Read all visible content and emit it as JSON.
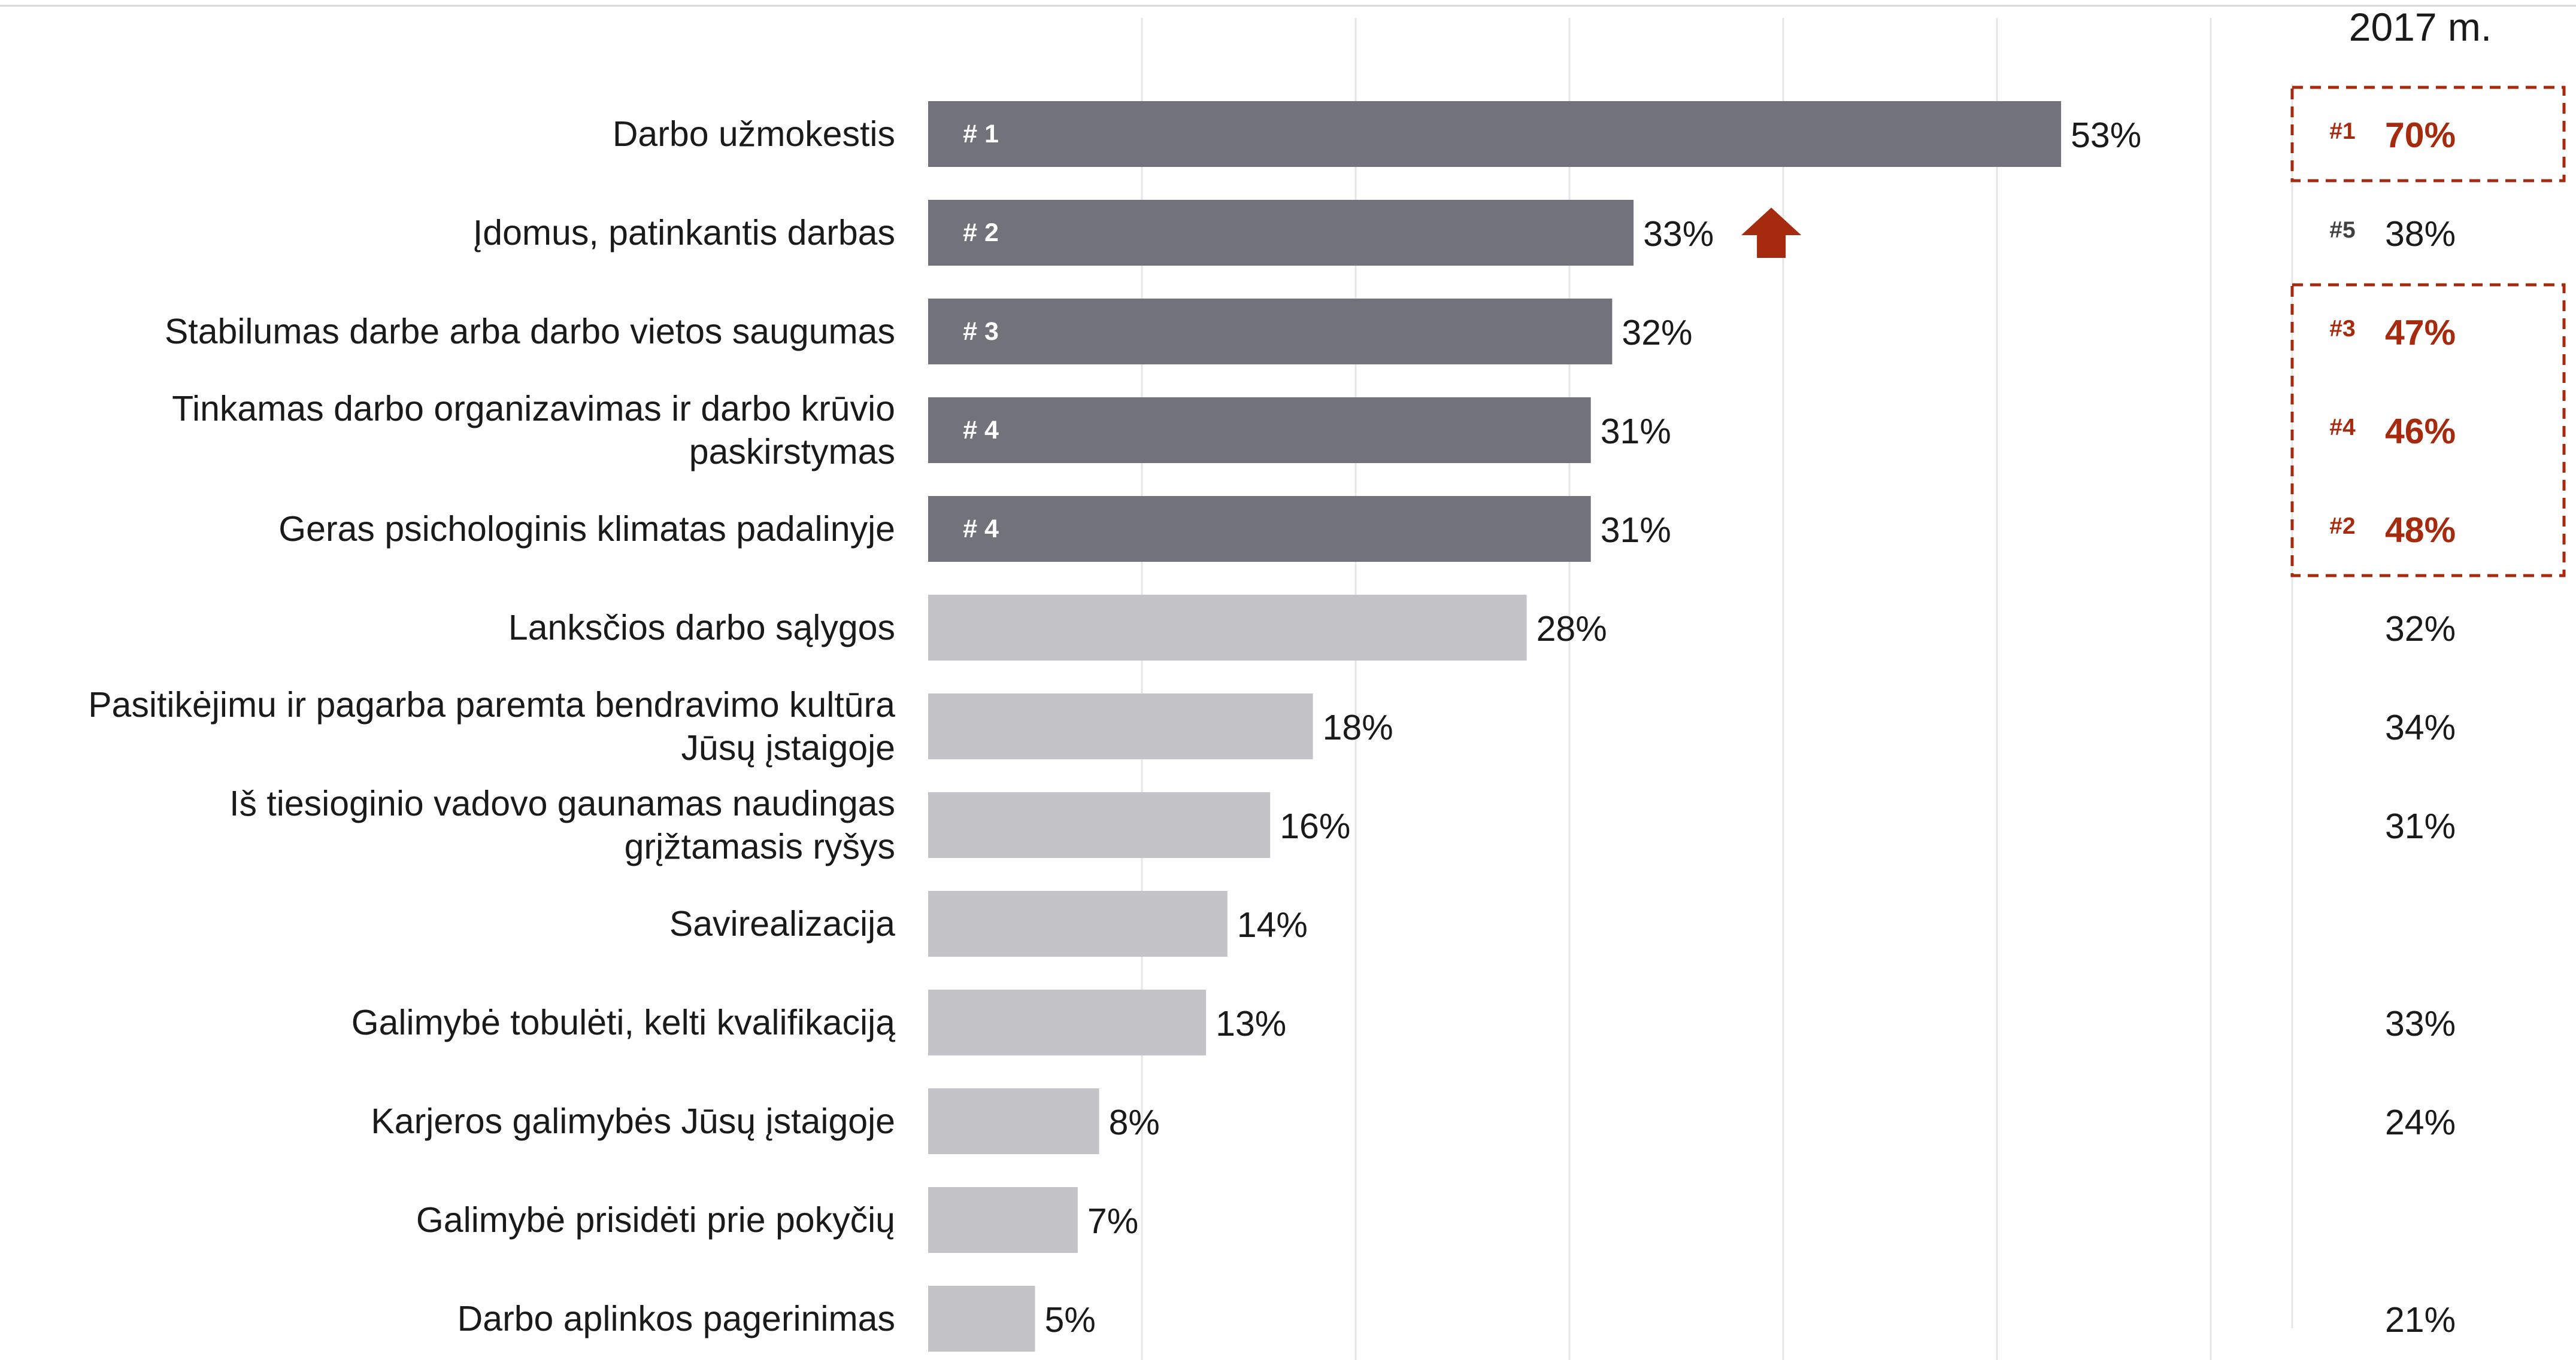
{
  "chart_data": {
    "type": "bar",
    "orientation": "horizontal",
    "xlim": [
      0,
      100
    ],
    "grid": true,
    "categories": [
      "Darbo užmokestis",
      "Įdomus, patinkantis darbas",
      "Stabilumas darbe arba darbo vietos saugumas",
      "Tinkamas darbo organizavimas ir darbo krūvio paskirstymas",
      "Geras psichologinis klimatas padalinyje",
      "Lanksčios darbo sąlygos",
      "Pasitikėjimu ir pagarba paremta bendravimo kultūra Jūsų įstaigoje",
      "Iš tiesioginio vadovo gaunamas naudingas grįžtamasis ryšys",
      "Savirealizacija",
      "Galimybė tobulėti, kelti kvalifikaciją",
      "Karjeros galimybės Jūsų įstaigoje",
      "Galimybė prisidėti prie pokyčių",
      "Darbo aplinkos pagerinimas"
    ],
    "label_lines": [
      [
        "Darbo užmokestis"
      ],
      [
        "Įdomus, patinkantis darbas"
      ],
      [
        "Stabilumas darbe arba darbo vietos saugumas"
      ],
      [
        "Tinkamas darbo organizavimas ir darbo krūvio",
        "paskirstymas"
      ],
      [
        "Geras psichologinis klimatas padalinyje"
      ],
      [
        "Lanksčios darbo sąlygos"
      ],
      [
        "Pasitikėjimu ir pagarba paremta bendravimo kultūra",
        "Jūsų įstaigoje"
      ],
      [
        "Iš tiesioginio vadovo gaunamas naudingas",
        "grįžtamasis ryšys"
      ],
      [
        "Savirealizacija"
      ],
      [
        "Galimybė tobulėti, kelti kvalifikaciją"
      ],
      [
        "Karjeros galimybės Jūsų įstaigoje"
      ],
      [
        "Galimybė prisidėti prie pokyčių"
      ],
      [
        "Darbo aplinkos pagerinimas"
      ]
    ],
    "values": [
      53,
      33,
      32,
      31,
      31,
      28,
      18,
      16,
      14,
      13,
      8,
      7,
      5
    ],
    "value_labels": [
      "53%",
      "33%",
      "32%",
      "31%",
      "31%",
      "28%",
      "18%",
      "16%",
      "14%",
      "13%",
      "8%",
      "7%",
      "5%"
    ],
    "ranks": [
      "# 1",
      "# 2",
      "# 3",
      "# 4",
      "# 4",
      "",
      "",
      "",
      "",
      "",
      "",
      "",
      ""
    ],
    "bar_colors": [
      "#72727a",
      "#72727a",
      "#72727a",
      "#72727a",
      "#72727a",
      "#c4c4c8",
      "#c4c4c8",
      "#c4c4c8",
      "#c4c4c8",
      "#c4c4c8",
      "#c4c4c8",
      "#c4c4c8",
      "#c4c4c8"
    ],
    "trend_up_index": 1,
    "comparison": {
      "header": "2017 m.",
      "values": [
        "70%",
        "38%",
        "47%",
        "46%",
        "48%",
        "32%",
        "34%",
        "31%",
        "",
        "33%",
        "24%",
        "",
        "21%"
      ],
      "ranks": [
        "#1",
        "#5",
        "#3",
        "#4",
        "#2",
        "",
        "",
        "",
        "",
        "",
        "",
        "",
        ""
      ],
      "highlighted": [
        true,
        false,
        true,
        true,
        true,
        false,
        false,
        false,
        false,
        false,
        false,
        false,
        false
      ]
    }
  },
  "colors": {
    "top_bar": "#72727a",
    "other_bar": "#c4c4c8",
    "accent": "#a52a0e",
    "grid": "#e6e6e6"
  }
}
